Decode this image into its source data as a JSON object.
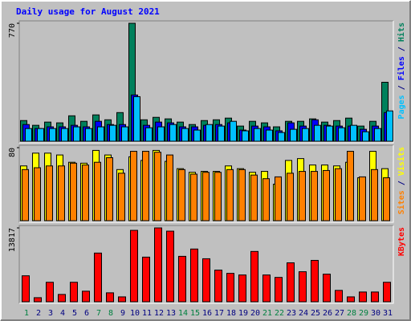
{
  "title": "Daily usage for August 2021",
  "legend_separator": " / ",
  "chart_data": [
    {
      "type": "bar",
      "ylim": [
        0,
        770
      ],
      "yticks": [
        770
      ],
      "series": [
        {
          "name": "Hits",
          "color": "#00805c",
          "values": [
            135,
            104,
            125,
            120,
            166,
            130,
            172,
            140,
            187,
            770,
            140,
            156,
            146,
            125,
            109,
            135,
            140,
            151,
            99,
            130,
            120,
            94,
            130,
            130,
            146,
            125,
            135,
            151,
            99,
            130,
            385
          ]
        },
        {
          "name": "Files",
          "color": "#0000ff",
          "values": [
            109,
            83,
            94,
            94,
            104,
            94,
            130,
            109,
            109,
            302,
            104,
            125,
            120,
            94,
            94,
            104,
            109,
            120,
            73,
            99,
            94,
            68,
            120,
            99,
            140,
            104,
            99,
            99,
            78,
            99,
            187
          ]
        },
        {
          "name": "Pages",
          "color": "#00c0ff",
          "values": [
            83,
            83,
            83,
            83,
            94,
            83,
            94,
            104,
            94,
            291,
            88,
            94,
            109,
            83,
            73,
            109,
            99,
            130,
            68,
            83,
            73,
            57,
            78,
            83,
            104,
            99,
            88,
            104,
            62,
            83,
            198
          ]
        }
      ]
    },
    {
      "type": "bar",
      "ylim": [
        0,
        80
      ],
      "yticks": [
        80
      ],
      "series": [
        {
          "name": "Visits",
          "color": "#ffff00",
          "values": [
            60,
            74,
            74,
            72,
            64,
            63,
            77,
            72,
            56,
            70,
            66,
            77,
            65,
            57,
            53,
            54,
            54,
            60,
            57,
            53,
            54,
            40,
            66,
            68,
            61,
            61,
            60,
            64,
            47,
            76,
            57
          ]
        },
        {
          "name": "Sites",
          "color": "#ff8000",
          "values": [
            56,
            58,
            60,
            60,
            63,
            61,
            64,
            69,
            52,
            76,
            76,
            75,
            72,
            56,
            51,
            53,
            53,
            56,
            56,
            50,
            46,
            48,
            52,
            54,
            54,
            55,
            57,
            76,
            48,
            56,
            47
          ]
        }
      ]
    },
    {
      "type": "bar",
      "ylim": [
        0,
        13817
      ],
      "yticks": [
        13817
      ],
      "categories": [
        "1",
        "2",
        "3",
        "4",
        "5",
        "6",
        "7",
        "8",
        "9",
        "10",
        "11",
        "12",
        "13",
        "14",
        "15",
        "16",
        "17",
        "18",
        "19",
        "20",
        "21",
        "22",
        "23",
        "24",
        "25",
        "26",
        "27",
        "28",
        "29",
        "30",
        "31"
      ],
      "category_colors": [
        "#008040",
        "#000080",
        "#000080",
        "#000080",
        "#000080",
        "#000080",
        "#008040",
        "#008040",
        "#000080",
        "#000080",
        "#000080",
        "#000080",
        "#000080",
        "#008040",
        "#008040",
        "#000080",
        "#000080",
        "#000080",
        "#000080",
        "#000080",
        "#008040",
        "#008040",
        "#000080",
        "#000080",
        "#000080",
        "#000080",
        "#000080",
        "#008040",
        "#008040",
        "#000080",
        "#000080"
      ],
      "series": [
        {
          "name": "KBytes",
          "color": "#ff0000",
          "values": [
            4858,
            760,
            3644,
            1366,
            3644,
            1973,
            9109,
            1670,
            911,
            13362,
            8350,
            13817,
            13210,
            8500,
            9867,
            8046,
            5920,
            5313,
            5010,
            9413,
            5010,
            4554,
            7286,
            5617,
            7741,
            5161,
            2125,
            911,
            1822,
            1822,
            3644
          ]
        }
      ]
    }
  ]
}
